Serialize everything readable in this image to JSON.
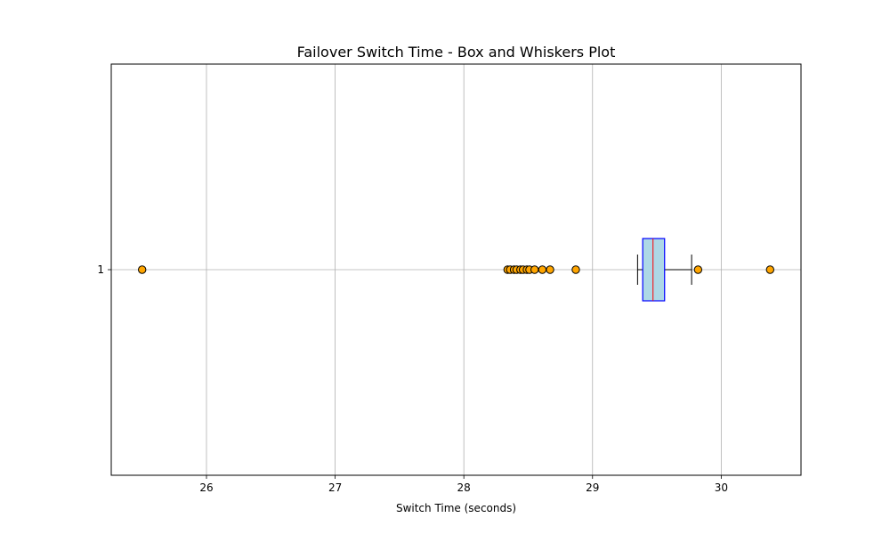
{
  "chart_data": {
    "type": "boxplot",
    "orientation": "horizontal",
    "title": "Failover Switch Time - Box and Whiskers Plot",
    "xlabel": "Switch Time (seconds)",
    "ylabel": "",
    "xlim": [
      25.26,
      30.62
    ],
    "xticks": [
      26,
      27,
      28,
      29,
      30
    ],
    "categories": [
      "1"
    ],
    "grid": true,
    "series": [
      {
        "category": "1",
        "whisker_low": 29.35,
        "q1": 29.39,
        "median": 29.47,
        "q3": 29.56,
        "whisker_high": 29.77,
        "outliers": [
          25.5,
          28.34,
          28.36,
          28.39,
          28.41,
          28.44,
          28.46,
          28.49,
          28.51,
          28.55,
          28.61,
          28.67,
          28.87,
          29.82,
          30.38
        ]
      }
    ],
    "colors": {
      "box_fill": "#add8e6",
      "box_edge": "#0000ff",
      "median": "#ff0000",
      "whisker": "#000000",
      "outlier_fill": "#ffa500",
      "outlier_edge": "#000000",
      "grid": "#b0b0b0"
    }
  }
}
